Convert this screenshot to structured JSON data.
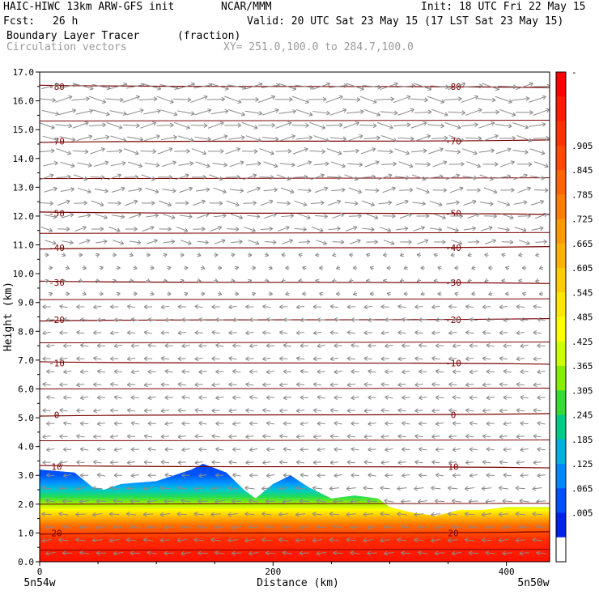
{
  "header": {
    "model": "HAIC-HIWC 13km ARW-GFS init",
    "org": "NCAR/MMM",
    "init": "Init: 18 UTC Fri 22 May 15",
    "fcst_label": "Fcst:",
    "fcst_value": "26 h",
    "valid": "Valid: 20 UTC Sat 23 May 15 (17 LST Sat 23 May 15)",
    "field": "Boundary Layer Tracer",
    "units": "(fraction)",
    "vectors": "Circulation vectors",
    "xy": "XY= 251.0,100.0 to 284.7,100.0"
  },
  "chart_data": {
    "type": "heatmap",
    "title": "Boundary Layer Tracer",
    "xlabel": "Distance (km)",
    "ylabel": "Height (km)",
    "xlim": [
      0,
      437
    ],
    "ylim": [
      0,
      17
    ],
    "x_ticks": [
      "0",
      "200",
      "400"
    ],
    "x_tick_values": [
      0,
      200,
      400
    ],
    "x_end_labels": [
      "5n54w",
      "5n50w"
    ],
    "y_ticks": [
      "0.0",
      "1.0",
      "2.0",
      "3.0",
      "4.0",
      "5.0",
      "6.0",
      "7.0",
      "8.0",
      "9.0",
      "10.0",
      "11.0",
      "12.0",
      "13.0",
      "14.0",
      "15.0",
      "16.0",
      "17.0"
    ],
    "colorbar": {
      "labels": [
        "-",
        ".905",
        ".845",
        ".785",
        ".725",
        ".665",
        ".605",
        ".545",
        ".485",
        ".425",
        ".365",
        ".305",
        ".245",
        ".185",
        ".125",
        ".065",
        ".005"
      ],
      "colors": [
        "#ff0000",
        "#ff1a00",
        "#ff3000",
        "#ff4a00",
        "#ff6400",
        "#ff7d00",
        "#ff9900",
        "#ffb300",
        "#ffcc00",
        "#ffe600",
        "#ffff00",
        "#ccff00",
        "#88ee00",
        "#33dd33",
        "#00cc88",
        "#00b0dd",
        "#0088ff",
        "#0050ff",
        "#0020ee",
        "#ffffff"
      ]
    },
    "boundary_layer_top_km": {
      "x_km": [
        0,
        30,
        45,
        55,
        70,
        100,
        130,
        140,
        160,
        175,
        185,
        200,
        215,
        230,
        250,
        270,
        290,
        300,
        320,
        340,
        360,
        380,
        400,
        420,
        437
      ],
      "top": [
        3.2,
        3.1,
        2.6,
        2.5,
        2.7,
        2.8,
        3.2,
        3.4,
        3.1,
        2.5,
        2.2,
        2.7,
        3.0,
        2.6,
        2.2,
        2.3,
        2.2,
        1.9,
        1.7,
        1.6,
        1.8,
        1.8,
        1.9,
        1.9,
        1.9
      ]
    },
    "temperature_contours": [
      {
        "label": "-80",
        "y_km": 16.5
      },
      {
        "label": "-70",
        "y_km": 14.6
      },
      {
        "label": "-50",
        "y_km": 12.1
      },
      {
        "label": "-40",
        "y_km": 10.9
      },
      {
        "label": "-30",
        "y_km": 9.7
      },
      {
        "label": "-20",
        "y_km": 8.4
      },
      {
        "label": "-10",
        "y_km": 6.9
      },
      {
        "label": "0",
        "y_km": 5.1
      },
      {
        "label": "10",
        "y_km": 3.3
      },
      {
        "label": "20",
        "y_km": 1.0
      }
    ],
    "grid": false,
    "legend": "right"
  }
}
